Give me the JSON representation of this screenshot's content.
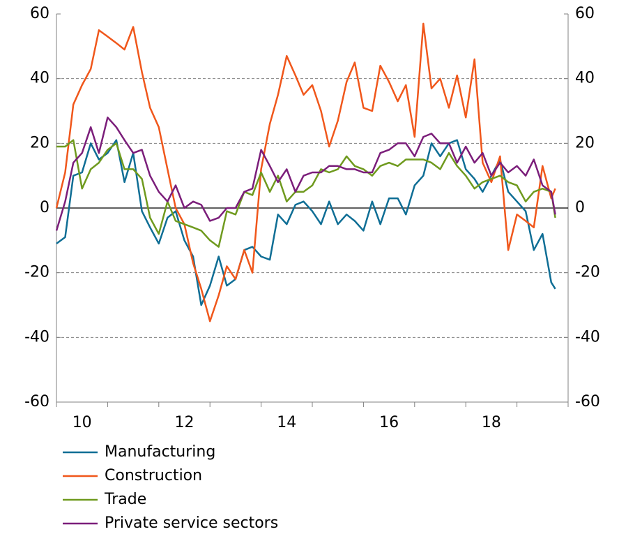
{
  "chart_data": {
    "type": "line",
    "x": [
      10,
      10.17,
      10.33,
      10.5,
      10.67,
      10.83,
      11,
      11.17,
      11.33,
      11.5,
      11.67,
      11.83,
      12,
      12.17,
      12.33,
      12.5,
      12.67,
      12.83,
      13,
      13.17,
      13.33,
      13.5,
      13.67,
      13.83,
      14,
      14.17,
      14.33,
      14.5,
      14.67,
      14.83,
      15,
      15.17,
      15.33,
      15.5,
      15.67,
      15.83,
      16,
      16.17,
      16.33,
      16.5,
      16.67,
      16.83,
      17,
      17.17,
      17.33,
      17.5,
      17.67,
      17.83,
      18,
      18.17,
      18.33,
      18.5,
      18.67,
      18.83,
      19,
      19.17,
      19.33,
      19.5,
      19.67,
      19.75
    ],
    "series": [
      {
        "name": "Manufacturing",
        "color": "#0f6e95",
        "values": [
          -11,
          -9,
          10,
          11,
          20,
          15,
          17,
          21,
          8,
          17,
          -1,
          -6,
          -11,
          -3,
          -1,
          -10,
          -15,
          -30,
          -24,
          -15,
          -24,
          -22,
          -13,
          -12,
          -15,
          -16,
          -2,
          -5,
          1,
          2,
          -1,
          -5,
          2,
          -5,
          -2,
          -4,
          -7,
          2,
          -5,
          3,
          3,
          -2,
          7,
          10,
          20,
          16,
          20,
          21,
          12,
          9,
          5,
          10,
          15,
          5,
          2,
          -1,
          -13,
          -8,
          -23,
          -25
        ]
      },
      {
        "name": "Construction",
        "color": "#f0571b",
        "values": [
          0,
          11,
          32,
          38,
          43,
          55,
          53,
          51,
          49,
          56,
          42,
          31,
          25,
          12,
          0,
          -5,
          -17,
          -25,
          -35,
          -27,
          -18,
          -22,
          -13,
          -20,
          12,
          26,
          35,
          47,
          41,
          35,
          38,
          30,
          19,
          27,
          39,
          45,
          31,
          30,
          44,
          39,
          33,
          38,
          22,
          57,
          37,
          40,
          31,
          41,
          28,
          46,
          14,
          8,
          16,
          -13,
          -2,
          -4,
          -6,
          13,
          3,
          6
        ]
      },
      {
        "name": "Trade",
        "color": "#6f9a1e",
        "values": [
          19,
          19,
          21,
          6,
          12,
          14,
          18,
          20,
          12,
          12,
          9,
          -3,
          -8,
          2,
          -4,
          -5,
          -6,
          -7,
          -10,
          -12,
          -1,
          -2,
          5,
          4,
          11,
          5,
          10,
          2,
          5,
          5,
          7,
          12,
          11,
          12,
          16,
          13,
          12,
          10,
          13,
          14,
          13,
          15,
          15,
          15,
          14,
          12,
          17,
          13,
          10,
          6,
          8,
          9,
          10,
          8,
          7,
          2,
          5,
          6,
          5,
          -3
        ]
      },
      {
        "name": "Private service sectors",
        "color": "#7b1e7a",
        "values": [
          -7,
          2,
          14,
          17,
          25,
          17,
          28,
          25,
          21,
          17,
          18,
          10,
          5,
          2,
          7,
          0,
          2,
          1,
          -4,
          -3,
          0,
          0,
          5,
          6,
          18,
          13,
          8,
          12,
          5,
          10,
          11,
          11,
          13,
          13,
          12,
          12,
          11,
          11,
          17,
          18,
          20,
          20,
          16,
          22,
          23,
          20,
          20,
          14,
          19,
          14,
          17,
          10,
          14,
          11,
          13,
          10,
          15,
          7,
          5,
          -2
        ]
      }
    ],
    "xlim": [
      10,
      20
    ],
    "xticks": [
      {
        "value": 10.5,
        "label": "10"
      },
      {
        "value": 12.5,
        "label": "12"
      },
      {
        "value": 14.5,
        "label": "14"
      },
      {
        "value": 16.5,
        "label": "16"
      },
      {
        "value": 18.5,
        "label": "18"
      }
    ],
    "xticks_minor": [
      10,
      11,
      12,
      13,
      14,
      15,
      16,
      17,
      18,
      19,
      20
    ],
    "ylim": [
      -60,
      60
    ],
    "yticks": [
      -60,
      -40,
      -20,
      0,
      20,
      40,
      60
    ],
    "y2lim": [
      -60,
      60
    ],
    "y2ticks": [
      -60,
      -40,
      -20,
      0,
      20,
      40,
      60
    ],
    "grid": true,
    "legend": "bottom-left"
  }
}
